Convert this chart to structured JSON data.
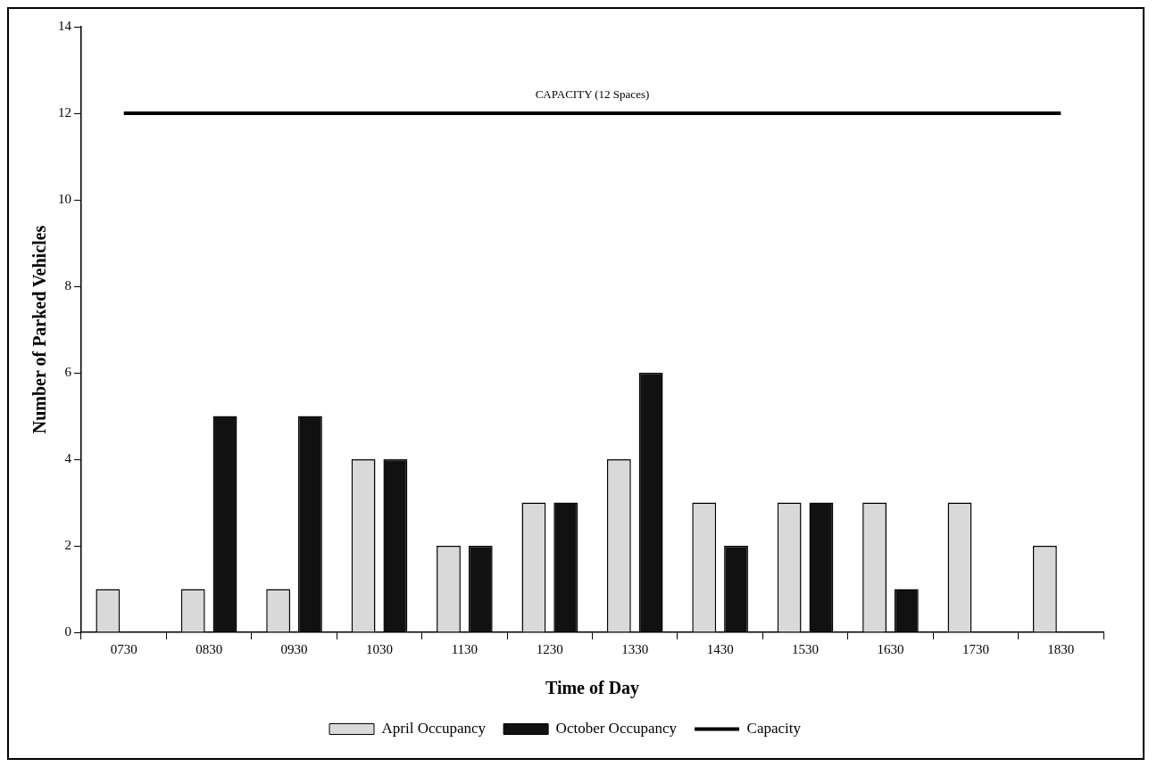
{
  "chart_data": {
    "type": "bar",
    "xlabel": "Time of Day",
    "ylabel": "Number of Parked Vehicles",
    "categories": [
      "0730",
      "0830",
      "0930",
      "1030",
      "1130",
      "1230",
      "1330",
      "1430",
      "1530",
      "1630",
      "1730",
      "1830"
    ],
    "series": [
      {
        "name": "April Occupancy",
        "color": "#d9d9d9",
        "values": [
          1,
          1,
          1,
          4,
          2,
          3,
          4,
          3,
          3,
          3,
          3,
          2
        ]
      },
      {
        "name": "October Occupancy",
        "color": "#111111",
        "values": [
          null,
          5,
          5,
          4,
          2,
          3,
          6,
          2,
          3,
          1,
          null,
          null
        ]
      },
      {
        "name": "Capacity",
        "type": "line",
        "color": "#000000",
        "values": [
          12,
          12,
          12,
          12,
          12,
          12,
          12,
          12,
          12,
          12,
          12,
          12
        ]
      }
    ],
    "ylim": [
      0,
      14
    ],
    "yticks": [
      0,
      2,
      4,
      6,
      8,
      10,
      12,
      14
    ],
    "grid": false,
    "legend": "bottom",
    "marker": "none",
    "annotations": [
      {
        "text": "CAPACITY (12 Spaces)",
        "y": 12
      }
    ]
  }
}
